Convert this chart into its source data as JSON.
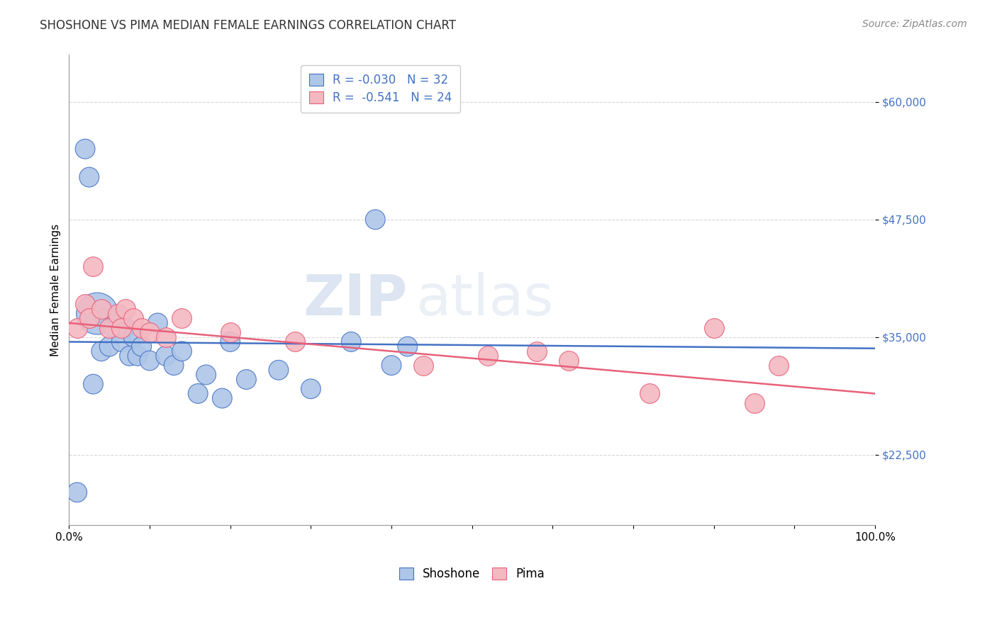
{
  "title": "SHOSHONE VS PIMA MEDIAN FEMALE EARNINGS CORRELATION CHART",
  "source_text": "Source: ZipAtlas.com",
  "ylabel": "Median Female Earnings",
  "xlim": [
    0.0,
    1.0
  ],
  "ylim": [
    15000,
    65000
  ],
  "xtick_positions": [
    0.0,
    0.1,
    0.2,
    0.3,
    0.4,
    0.5,
    0.6,
    0.7,
    0.8,
    0.9,
    1.0
  ],
  "xtick_labels_shown": {
    "0.0": "0.0%",
    "1.0": "100.0%"
  },
  "ytick_labels": [
    "$22,500",
    "$35,000",
    "$47,500",
    "$60,000"
  ],
  "ytick_values": [
    22500,
    35000,
    47500,
    60000
  ],
  "watermark_zip": "ZIP",
  "watermark_atlas": "atlas",
  "legend_line1": "R = -0.030   N = 32",
  "legend_line2": "R =  -0.541   N = 24",
  "shoshone_color": "#aec6e8",
  "pima_color": "#f4b8c1",
  "shoshone_edge_color": "#4472c4",
  "pima_edge_color": "#e8607a",
  "shoshone_line_color": "#4472c4",
  "pima_line_color": "#e8607a",
  "tick_color": "#4472c4",
  "background_color": "#ffffff",
  "grid_color": "#cccccc",
  "shoshone_legend_label": "Shoshone",
  "pima_legend_label": "Pima",
  "shoshone_x": [
    0.01,
    0.02,
    0.025,
    0.03,
    0.035,
    0.04,
    0.045,
    0.05,
    0.055,
    0.06,
    0.065,
    0.07,
    0.075,
    0.08,
    0.085,
    0.09,
    0.1,
    0.11,
    0.12,
    0.13,
    0.14,
    0.16,
    0.17,
    0.19,
    0.2,
    0.22,
    0.26,
    0.3,
    0.35,
    0.38,
    0.4,
    0.42
  ],
  "shoshone_y": [
    18500,
    55000,
    52000,
    30000,
    37500,
    33500,
    37000,
    34000,
    36000,
    37000,
    34500,
    36000,
    33000,
    35000,
    33000,
    34000,
    32500,
    36500,
    33000,
    32000,
    33500,
    29000,
    31000,
    28500,
    34500,
    30500,
    31500,
    29500,
    34500,
    47500,
    32000,
    34000
  ],
  "shoshone_size": 400,
  "shoshone_big_idx": 4,
  "shoshone_big_size": 1800,
  "pima_x": [
    0.01,
    0.02,
    0.025,
    0.03,
    0.04,
    0.05,
    0.06,
    0.065,
    0.07,
    0.08,
    0.09,
    0.1,
    0.12,
    0.14,
    0.2,
    0.28,
    0.44,
    0.52,
    0.58,
    0.62,
    0.72,
    0.8,
    0.85,
    0.88
  ],
  "pima_y": [
    36000,
    38500,
    37000,
    42500,
    38000,
    36000,
    37500,
    36000,
    38000,
    37000,
    36000,
    35500,
    35000,
    37000,
    35500,
    34500,
    32000,
    33000,
    33500,
    32500,
    29000,
    36000,
    28000,
    32000
  ],
  "pima_size": 400,
  "title_fontsize": 12,
  "axis_label_fontsize": 11,
  "tick_fontsize": 11,
  "source_fontsize": 10,
  "legend_fontsize": 12
}
